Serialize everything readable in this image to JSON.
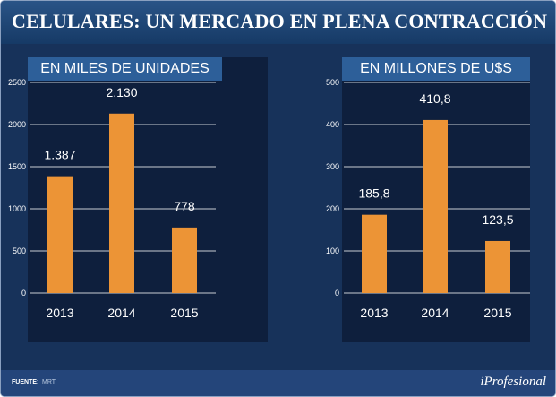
{
  "title": "CELULARES: UN MERCADO EN PLENA CONTRACCIÓN",
  "footer": {
    "source_label": "FUENTE:",
    "source_value": "MRT",
    "brand": "iProfesional"
  },
  "colors": {
    "bar": "#ec9436",
    "background": "#17325a",
    "panel": "#0e1f3d",
    "header": "#2d5f99",
    "grid": "#c8ccd4"
  },
  "chart_data": [
    {
      "type": "bar",
      "title": "EN MILES DE UNIDADES",
      "categories": [
        "2013",
        "2014",
        "2015"
      ],
      "values": [
        1387,
        2130,
        778
      ],
      "value_labels": [
        "1.387",
        "2.130",
        "778"
      ],
      "yticks": [
        0,
        500,
        1000,
        1500,
        2000,
        2500
      ],
      "ylim": [
        0,
        2500
      ],
      "xlabel": "",
      "ylabel": "",
      "grid": true
    },
    {
      "type": "bar",
      "title": "EN MILLONES DE U$S",
      "categories": [
        "2013",
        "2014",
        "2015"
      ],
      "values": [
        185.8,
        410.8,
        123.5
      ],
      "value_labels": [
        "185,8",
        "410,8",
        "123,5"
      ],
      "yticks": [
        0,
        100,
        200,
        300,
        400,
        500
      ],
      "ylim": [
        0,
        500
      ],
      "xlabel": "",
      "ylabel": "",
      "grid": true
    }
  ]
}
